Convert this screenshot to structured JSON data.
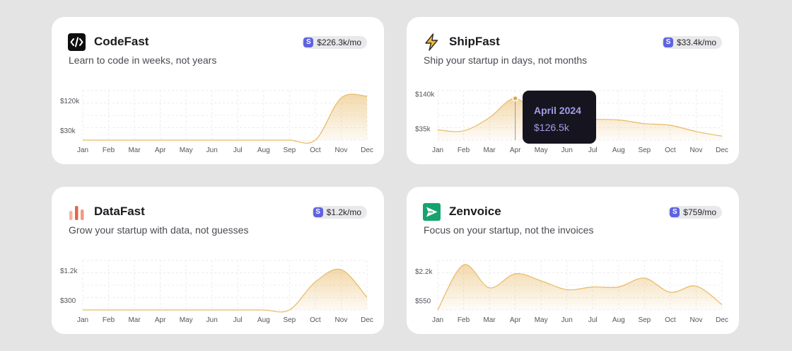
{
  "cards": [
    {
      "name": "CodeFast",
      "tagline": "Learn to code in weeks, not years",
      "mrr": "$226.3k/mo",
      "logo_icon": "code-brackets-icon",
      "badge_icon": "stripe-s-icon",
      "y_ticks": [
        "$120k",
        "$30k"
      ]
    },
    {
      "name": "ShipFast",
      "tagline": "Ship your startup in days, not months",
      "mrr": "$33.4k/mo",
      "logo_icon": "lightning-bolt-icon",
      "badge_icon": "stripe-s-icon",
      "y_ticks": [
        "$140k",
        "$35k"
      ],
      "tooltip": {
        "month": "April 2024",
        "value": "$126.5k"
      }
    },
    {
      "name": "DataFast",
      "tagline": "Grow your startup with data, not guesses",
      "mrr": "$1.2k/mo",
      "logo_icon": "bar-chart-icon",
      "badge_icon": "stripe-s-icon",
      "y_ticks": [
        "$1.2k",
        "$300"
      ]
    },
    {
      "name": "Zenvoice",
      "tagline": "Focus on your startup, not the invoices",
      "mrr": "$759/mo",
      "logo_icon": "paper-plane-icon",
      "badge_icon": "stripe-s-icon",
      "y_ticks": [
        "$2.2k",
        "$550"
      ]
    }
  ],
  "chart_data": [
    {
      "type": "area",
      "title": "",
      "categories": [
        "Jan",
        "Feb",
        "Mar",
        "Apr",
        "May",
        "Jun",
        "Jul",
        "Aug",
        "Sep",
        "Oct",
        "Nov",
        "Dec"
      ],
      "series": [
        {
          "values": [
            0,
            0,
            0,
            0,
            0,
            0,
            0,
            0,
            0,
            0,
            128000,
            133000
          ]
        }
      ],
      "ylim": [
        0,
        150000
      ],
      "y_ticks_values": [
        120000,
        30000
      ],
      "color": "#e8b965",
      "grid": true
    },
    {
      "type": "area",
      "title": "",
      "categories": [
        "Jan",
        "Feb",
        "Mar",
        "Apr",
        "May",
        "Jun",
        "Jul",
        "Aug",
        "Sep",
        "Oct",
        "Nov",
        "Dec"
      ],
      "series": [
        {
          "values": [
            31000,
            28000,
            68000,
            126500,
            63000,
            64000,
            63000,
            61000,
            50000,
            45000,
            26000,
            12000
          ]
        }
      ],
      "ylim": [
        0,
        150000
      ],
      "y_ticks_values": [
        140000,
        35000
      ],
      "highlight_index": 3,
      "color": "#e8b965",
      "grid": true
    },
    {
      "type": "area",
      "title": "",
      "categories": [
        "Jan",
        "Feb",
        "Mar",
        "Apr",
        "May",
        "Jun",
        "Jul",
        "Aug",
        "Sep",
        "Oct",
        "Nov",
        "Dec"
      ],
      "series": [
        {
          "values": [
            0,
            0,
            0,
            0,
            0,
            0,
            0,
            0,
            0,
            850,
            1220,
            380
          ]
        }
      ],
      "ylim": [
        0,
        1500
      ],
      "y_ticks_values": [
        1200,
        300
      ],
      "color": "#e8b965",
      "grid": true
    },
    {
      "type": "area",
      "title": "",
      "categories": [
        "Jan",
        "Feb",
        "Mar",
        "Apr",
        "May",
        "Jun",
        "Jul",
        "Aug",
        "Sep",
        "Oct",
        "Nov",
        "Dec"
      ],
      "series": [
        {
          "values": [
            0,
            2550,
            1250,
            2050,
            1650,
            1150,
            1300,
            1300,
            1800,
            1000,
            1350,
            300
          ]
        }
      ],
      "ylim": [
        0,
        2800
      ],
      "y_ticks_values": [
        2200,
        550
      ],
      "color": "#e8b965",
      "grid": true
    }
  ]
}
